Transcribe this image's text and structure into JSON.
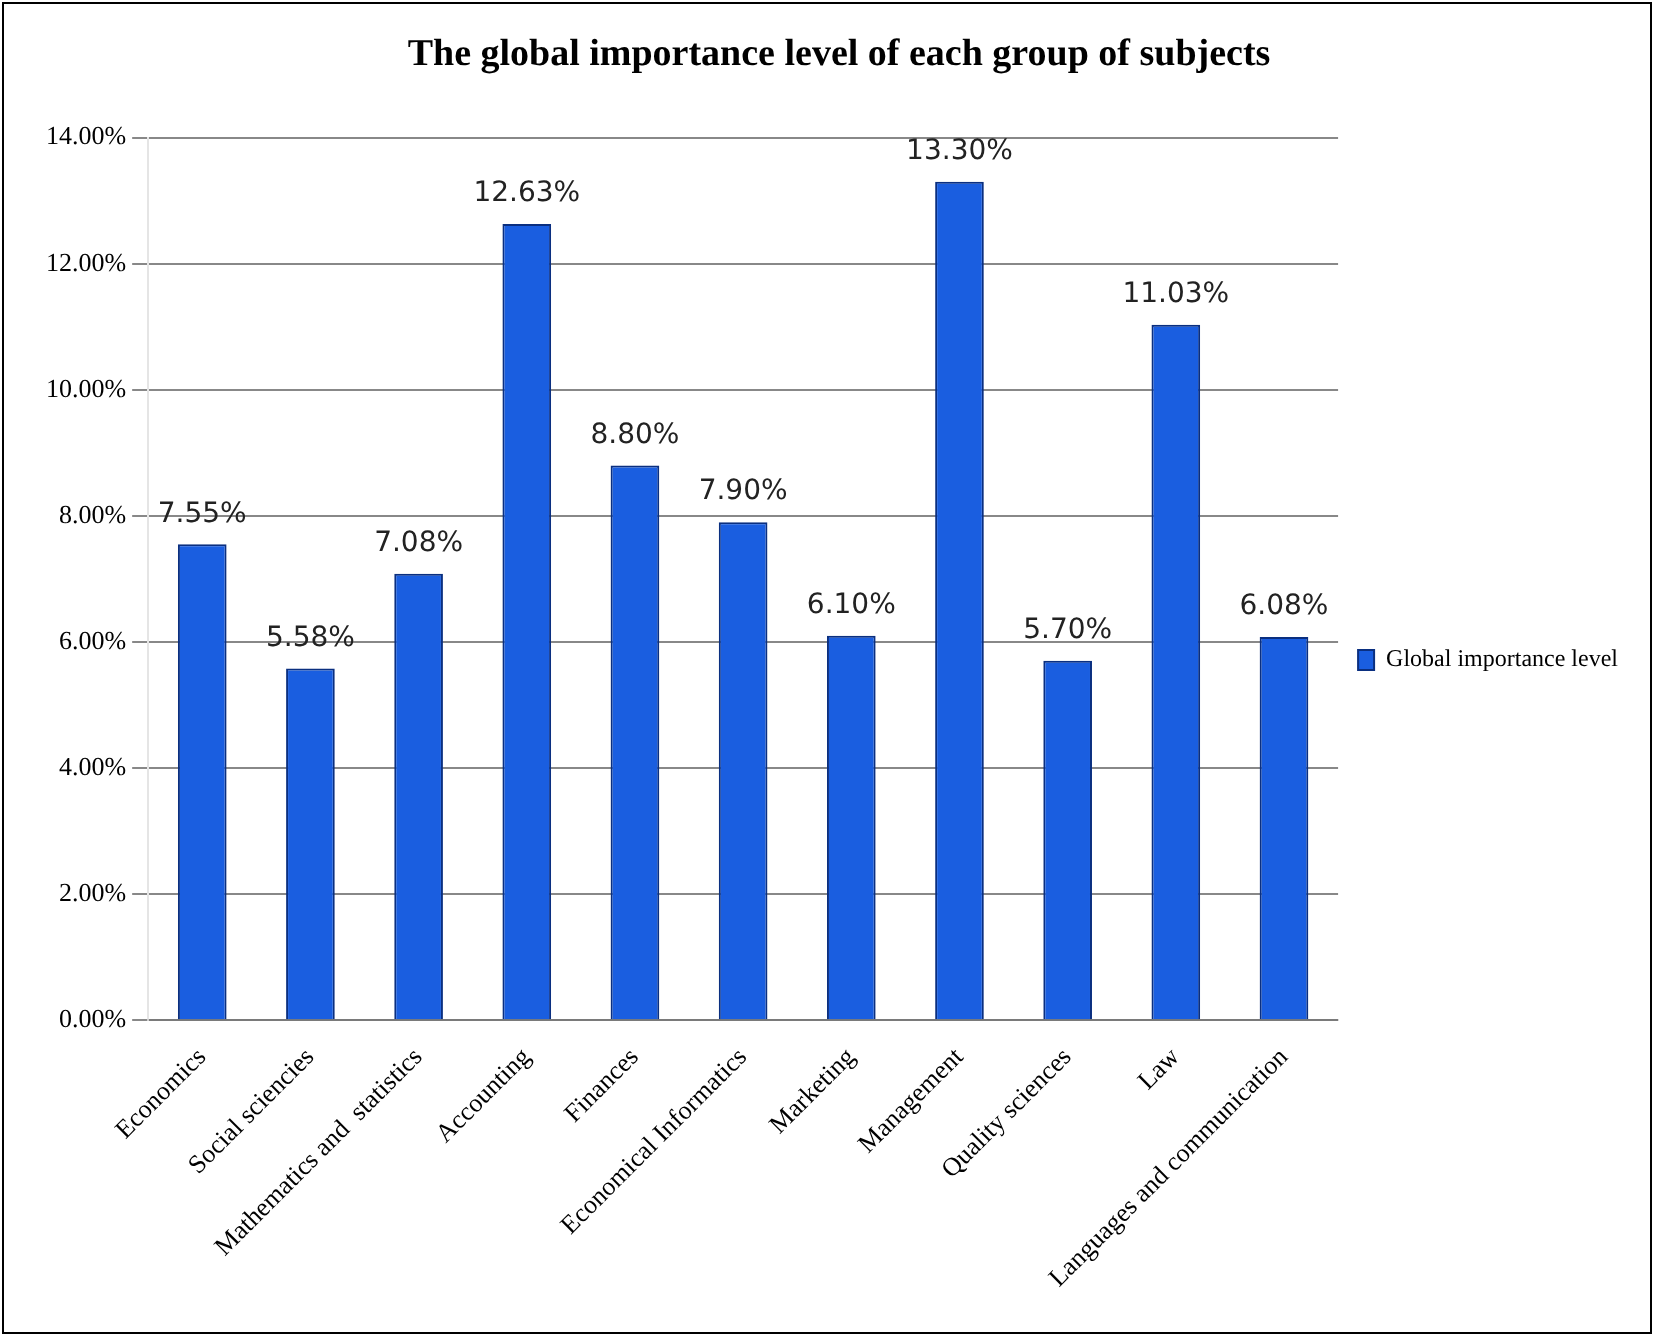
{
  "chart_data": {
    "type": "bar",
    "title": "The global importance level of each group of subjects",
    "categories": [
      "Economics",
      "Social sciencies",
      "Mathematics and  statistics",
      "Accounting",
      "Finances",
      "Economical Informatics",
      "Marketing",
      "Management",
      "Quality sciences",
      "Law",
      "Languages and communication"
    ],
    "series": [
      {
        "name": "Global importance level",
        "color": "#1a5ee0",
        "values": [
          7.55,
          5.58,
          7.08,
          12.63,
          8.8,
          7.9,
          6.1,
          13.3,
          5.7,
          11.03,
          6.08
        ],
        "value_labels": [
          "7.55%",
          "5.58%",
          "7.08%",
          "12.63%",
          "8.80%",
          "7.90%",
          "6.10%",
          "13.30%",
          "5.70%",
          "11.03%",
          "6.08%"
        ]
      }
    ],
    "ylim": [
      0,
      14
    ],
    "yticks": [
      {
        "value": 0,
        "label": "0.00%"
      },
      {
        "value": 2,
        "label": "2.00%"
      },
      {
        "value": 4,
        "label": "4.00%"
      },
      {
        "value": 6,
        "label": "6.00%"
      },
      {
        "value": 8,
        "label": "8.00%"
      },
      {
        "value": 10,
        "label": "10.00%"
      },
      {
        "value": 12,
        "label": "12.00%"
      },
      {
        "value": 14,
        "label": "14.00%"
      }
    ],
    "grid": "y",
    "legend": "right"
  }
}
